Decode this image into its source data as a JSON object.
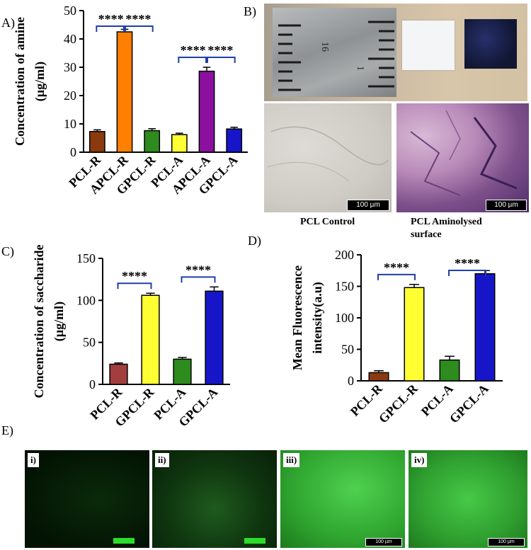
{
  "panel_labels": {
    "A": "A)",
    "B": "B)",
    "C": "C)",
    "D": "D)",
    "E": "E)"
  },
  "chart_data": [
    {
      "id": "A",
      "type": "bar",
      "ylabel_lines": [
        "Concentration of amine",
        "(µg/ml)"
      ],
      "categories": [
        "PCL-R",
        "APCL-R",
        "GPCL-R",
        "PCL-A",
        "APCL-A",
        "GPCL-A"
      ],
      "values": [
        7.3,
        42.5,
        7.6,
        6.2,
        28.6,
        8.2
      ],
      "errors": [
        0.6,
        0.9,
        0.7,
        0.5,
        1.4,
        0.6
      ],
      "colors": [
        "#8B3A0F",
        "#FF7F00",
        "#2E8B1E",
        "#FFFF33",
        "#8B10A0",
        "#1616C8"
      ],
      "ylim": [
        0,
        50
      ],
      "yticks": [
        0,
        10,
        20,
        30,
        40,
        50
      ],
      "significance": [
        {
          "from": 0,
          "to": 1,
          "label": "****"
        },
        {
          "from": 1,
          "to": 2,
          "label": "****"
        },
        {
          "from": 3,
          "to": 4,
          "label": "****"
        },
        {
          "from": 4,
          "to": 5,
          "label": "****"
        }
      ]
    },
    {
      "id": "C",
      "type": "bar",
      "ylabel_lines": [
        "Concentration of saccharide",
        "(µg/ml)"
      ],
      "categories": [
        "PCL-R",
        "GPCL-R",
        "PCL-A",
        "GPCL-A"
      ],
      "values": [
        24,
        106,
        30,
        111
      ],
      "errors": [
        1.5,
        2.5,
        2,
        5
      ],
      "colors": [
        "#A33E3E",
        "#FFFF33",
        "#2E8B1E",
        "#1616C8"
      ],
      "ylim": [
        0,
        150
      ],
      "yticks": [
        0,
        50,
        100,
        150
      ],
      "significance": [
        {
          "from": 0,
          "to": 1,
          "label": "****"
        },
        {
          "from": 2,
          "to": 3,
          "label": "****"
        }
      ]
    },
    {
      "id": "D",
      "type": "bar",
      "ylabel_lines": [
        "Mean Fluorescence",
        "intensity(a.u)"
      ],
      "categories": [
        "PCL-R",
        "GPCL-R",
        "PCL-A",
        "GPCL-A"
      ],
      "values": [
        13,
        148,
        33,
        170
      ],
      "errors": [
        3,
        5,
        6,
        5
      ],
      "colors": [
        "#8B3A0F",
        "#FFFF33",
        "#2E8B1E",
        "#1616C8"
      ],
      "ylim": [
        0,
        200
      ],
      "yticks": [
        0,
        50,
        100,
        150,
        200
      ],
      "significance": [
        {
          "from": 0,
          "to": 1,
          "label": "****"
        },
        {
          "from": 2,
          "to": 3,
          "label": "****"
        }
      ]
    }
  ],
  "panel_b": {
    "ruler_numbers": [
      "16",
      "1"
    ],
    "scalebar_label": "100 µm",
    "caption_left": "PCL Control",
    "caption_right_line1": "PCL Aminolysed",
    "caption_right_line2": "surface"
  },
  "panel_e": {
    "labels": [
      "i)",
      "ii)",
      "iii)",
      "iv)"
    ],
    "scalebar_label": "100 µm"
  },
  "colors": {
    "bracket": "#1F3FA8",
    "axis": "#000000"
  }
}
